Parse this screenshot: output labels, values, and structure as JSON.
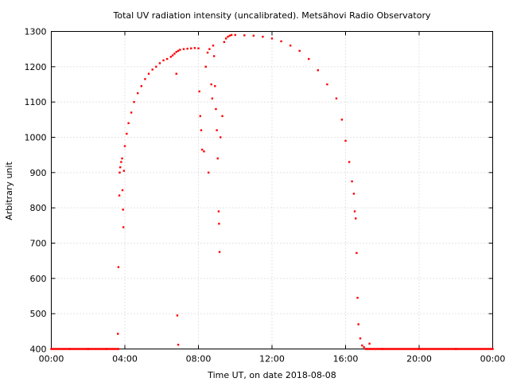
{
  "chart_data": {
    "type": "scatter",
    "title": "Total UV radiation intensity (uncalibrated). Metsähovi Radio Observatory",
    "xlabel": "Time UT, on date 2018-08-08",
    "ylabel": "Arbitrary unit",
    "x_unit": "hours UT",
    "xlim": [
      0,
      24
    ],
    "ylim": [
      400,
      1300
    ],
    "x_ticks": [
      {
        "value": 0,
        "label": "00:00"
      },
      {
        "value": 4,
        "label": "04:00"
      },
      {
        "value": 8,
        "label": "08:00"
      },
      {
        "value": 12,
        "label": "12:00"
      },
      {
        "value": 16,
        "label": "16:00"
      },
      {
        "value": 20,
        "label": "20:00"
      },
      {
        "value": 24,
        "label": "00:00"
      }
    ],
    "y_ticks": [
      400,
      500,
      600,
      700,
      800,
      900,
      1000,
      1100,
      1200,
      1300
    ],
    "grid": true,
    "series_color": "#ff0000",
    "series": [
      {
        "x": [
          0.0,
          1.0,
          2.0,
          3.0,
          3.65,
          3.62,
          3.65,
          3.7,
          3.72,
          3.75,
          3.8,
          3.85,
          3.87,
          3.9,
          3.92,
          3.95,
          4.0,
          4.1,
          4.2,
          4.35,
          4.5,
          4.7,
          4.9,
          5.1,
          5.3,
          5.5,
          5.7,
          5.9,
          6.1,
          6.3,
          6.5,
          6.6,
          6.7,
          6.8,
          6.9,
          7.0,
          7.2,
          7.4,
          7.6,
          7.8,
          8.0,
          6.8,
          6.85,
          6.9,
          8.05,
          8.1,
          8.15,
          8.2,
          8.3,
          8.4,
          8.5,
          8.55,
          8.6,
          8.7,
          8.75,
          8.8,
          8.85,
          8.9,
          8.95,
          9.0,
          9.05,
          9.1,
          9.12,
          9.15,
          9.2,
          9.3,
          9.4,
          9.5,
          9.6,
          9.7,
          9.8,
          10.0,
          10.5,
          11.0,
          11.5,
          12.0,
          12.5,
          13.0,
          13.5,
          14.0,
          14.5,
          15.0,
          15.5,
          15.8,
          16.0,
          16.2,
          16.35,
          16.45,
          16.5,
          16.55,
          16.6,
          16.65,
          16.7,
          16.8,
          16.9,
          17.0,
          17.1,
          17.3,
          18.0,
          20.0,
          22.0,
          24.0
        ],
        "y": [
          400,
          400,
          400,
          400,
          400,
          443,
          632,
          835,
          900,
          915,
          930,
          940,
          850,
          795,
          745,
          905,
          975,
          1010,
          1040,
          1070,
          1100,
          1125,
          1145,
          1165,
          1180,
          1192,
          1200,
          1210,
          1218,
          1222,
          1228,
          1232,
          1237,
          1242,
          1245,
          1248,
          1250,
          1251,
          1252,
          1253,
          1252,
          1180,
          495,
          412,
          1130,
          1060,
          1020,
          965,
          960,
          1200,
          1240,
          900,
          1250,
          1150,
          1110,
          1260,
          1230,
          1145,
          1080,
          1020,
          940,
          790,
          755,
          675,
          1000,
          1060,
          1270,
          1280,
          1285,
          1288,
          1290,
          1290,
          1289,
          1288,
          1285,
          1280,
          1272,
          1260,
          1245,
          1222,
          1190,
          1150,
          1110,
          1050,
          990,
          930,
          875,
          840,
          790,
          770,
          672,
          545,
          470,
          430,
          410,
          405,
          400,
          415,
          400,
          400,
          400,
          400
        ]
      }
    ]
  }
}
